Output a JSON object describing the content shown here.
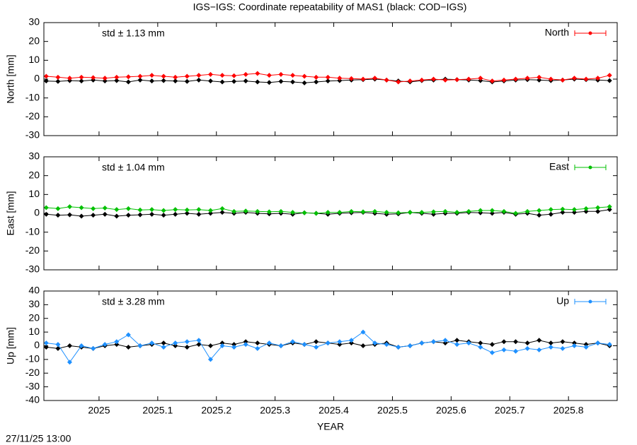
{
  "title": "IGS−IGS: Coordinate repeatability of MAS1 (black: COD−IGS)",
  "footer": "27/11/25 13:00",
  "chart_data": [
    {
      "type": "line",
      "ylabel": "North [mm]",
      "annotation": "std ± 1.13 mm",
      "legend": "top-right",
      "xlim": [
        2024.906,
        2025.883
      ],
      "xticks": [
        2025,
        2025.1,
        2025.2,
        2025.3,
        2025.4,
        2025.5,
        2025.6,
        2025.7,
        2025.8
      ],
      "ylim": [
        -30,
        30
      ],
      "yticks": [
        -30,
        -20,
        -10,
        0,
        10,
        20,
        30
      ],
      "x": [
        2024.91,
        2024.93,
        2024.95,
        2024.97,
        2024.99,
        2025.01,
        2025.03,
        2025.05,
        2025.07,
        2025.09,
        2025.11,
        2025.13,
        2025.15,
        2025.17,
        2025.19,
        2025.21,
        2025.23,
        2025.25,
        2025.27,
        2025.29,
        2025.31,
        2025.33,
        2025.35,
        2025.37,
        2025.39,
        2025.41,
        2025.43,
        2025.45,
        2025.47,
        2025.49,
        2025.51,
        2025.53,
        2025.55,
        2025.57,
        2025.59,
        2025.61,
        2025.63,
        2025.65,
        2025.67,
        2025.69,
        2025.71,
        2025.73,
        2025.75,
        2025.77,
        2025.79,
        2025.81,
        2025.83,
        2025.85,
        2025.87
      ],
      "series": [
        {
          "color": "#000000",
          "values": [
            -1,
            -1.2,
            -0.8,
            -1,
            -0.5,
            -1,
            -0.8,
            -1.5,
            -0.5,
            -1,
            -0.8,
            -1,
            -1.2,
            -0.5,
            -1,
            -1.5,
            -1.2,
            -1,
            -1.5,
            -1.8,
            -1.2,
            -1.5,
            -2,
            -1.5,
            -1,
            -0.8,
            -0.5,
            -0.3,
            0,
            -0.5,
            -1,
            -1.5,
            -0.8,
            -0.5,
            0,
            -0.3,
            -0.5,
            -0.8,
            -1.5,
            -1,
            -0.5,
            -0.3,
            -0.5,
            -0.8,
            -0.5,
            0,
            -0.3,
            -0.5,
            -0.8
          ]
        },
        {
          "name": "North",
          "color": "#ff0000",
          "values": [
            1.5,
            1,
            0.5,
            1,
            0.8,
            0.5,
            1,
            1.2,
            1.5,
            2,
            1.5,
            1,
            1.5,
            2,
            2.5,
            2,
            1.8,
            2.5,
            3,
            2,
            2.5,
            2,
            1.5,
            1,
            1,
            0.5,
            0.3,
            0,
            0.5,
            -0.5,
            -1.5,
            -1,
            -0.5,
            0,
            -0.5,
            -0.3,
            0,
            0.5,
            -1,
            -0.5,
            0,
            0.5,
            1,
            0,
            -0.5,
            0.5,
            0,
            0.5,
            2
          ]
        }
      ]
    },
    {
      "type": "line",
      "ylabel": "East [mm]",
      "annotation": "std ± 1.04 mm",
      "legend": "top-right",
      "xlim": [
        2024.906,
        2025.883
      ],
      "xticks": [
        2025,
        2025.1,
        2025.2,
        2025.3,
        2025.4,
        2025.5,
        2025.6,
        2025.7,
        2025.8
      ],
      "ylim": [
        -30,
        30
      ],
      "yticks": [
        -30,
        -20,
        -10,
        0,
        10,
        20,
        30
      ],
      "x": [
        2024.91,
        2024.93,
        2024.95,
        2024.97,
        2024.99,
        2025.01,
        2025.03,
        2025.05,
        2025.07,
        2025.09,
        2025.11,
        2025.13,
        2025.15,
        2025.17,
        2025.19,
        2025.21,
        2025.23,
        2025.25,
        2025.27,
        2025.29,
        2025.31,
        2025.33,
        2025.35,
        2025.37,
        2025.39,
        2025.41,
        2025.43,
        2025.45,
        2025.47,
        2025.49,
        2025.51,
        2025.53,
        2025.55,
        2025.57,
        2025.59,
        2025.61,
        2025.63,
        2025.65,
        2025.67,
        2025.69,
        2025.71,
        2025.73,
        2025.75,
        2025.77,
        2025.79,
        2025.81,
        2025.83,
        2025.85,
        2025.87
      ],
      "series": [
        {
          "color": "#000000",
          "values": [
            -0.5,
            -1,
            -0.8,
            -1.5,
            -1,
            -0.5,
            -1.5,
            -1,
            -0.8,
            -0.5,
            -1,
            -0.5,
            0,
            -0.5,
            0,
            0.5,
            0,
            0.5,
            0,
            -0.3,
            0,
            -0.5,
            0.3,
            0,
            -0.5,
            0,
            0.3,
            0.5,
            0,
            -0.5,
            -0.3,
            0.5,
            0,
            -0.5,
            0,
            0,
            0.5,
            0.3,
            0,
            0.5,
            -0.5,
            0,
            -1,
            -0.5,
            0.5,
            0.5,
            1,
            1,
            2
          ]
        },
        {
          "name": "East",
          "color": "#00c000",
          "values": [
            3,
            2.5,
            3.5,
            3,
            2.5,
            2.8,
            2,
            2.5,
            1.8,
            2,
            1.5,
            2,
            1.8,
            2,
            1.5,
            2.5,
            1,
            1.2,
            1,
            0.8,
            1,
            0.5,
            0.3,
            0,
            0.5,
            0.5,
            1,
            0.8,
            1,
            0.5,
            0.3,
            0.5,
            0.5,
            0.8,
            1,
            0.5,
            1,
            1.5,
            1.5,
            1,
            0,
            1,
            1.5,
            2,
            2.2,
            2,
            2.5,
            3,
            3.5
          ]
        }
      ]
    },
    {
      "type": "line",
      "ylabel": "Up [mm]",
      "annotation": "std ± 3.28 mm",
      "legend": "top-right",
      "xlabel": "YEAR",
      "xlim": [
        2024.906,
        2025.883
      ],
      "xticks": [
        2025,
        2025.1,
        2025.2,
        2025.3,
        2025.4,
        2025.5,
        2025.6,
        2025.7,
        2025.8
      ],
      "ylim": [
        -40,
        40
      ],
      "yticks": [
        -40,
        -30,
        -20,
        -10,
        0,
        10,
        20,
        30,
        40
      ],
      "x": [
        2024.91,
        2024.93,
        2024.95,
        2024.97,
        2024.99,
        2025.01,
        2025.03,
        2025.05,
        2025.07,
        2025.09,
        2025.11,
        2025.13,
        2025.15,
        2025.17,
        2025.19,
        2025.21,
        2025.23,
        2025.25,
        2025.27,
        2025.29,
        2025.31,
        2025.33,
        2025.35,
        2025.37,
        2025.39,
        2025.41,
        2025.43,
        2025.45,
        2025.47,
        2025.49,
        2025.51,
        2025.53,
        2025.55,
        2025.57,
        2025.59,
        2025.61,
        2025.63,
        2025.65,
        2025.67,
        2025.69,
        2025.71,
        2025.73,
        2025.75,
        2025.77,
        2025.79,
        2025.81,
        2025.83,
        2025.85,
        2025.87
      ],
      "series": [
        {
          "color": "#000000",
          "values": [
            -1,
            -2,
            0,
            -1,
            -2,
            0,
            1,
            -1,
            0,
            1,
            2,
            0,
            -1,
            1,
            0,
            2,
            1,
            3,
            2,
            1,
            0,
            2,
            1,
            3,
            2,
            1,
            2,
            0,
            1,
            2,
            -1,
            0,
            2,
            3,
            2,
            4,
            3,
            2,
            1,
            3,
            3,
            2,
            4,
            2,
            3,
            2,
            1,
            2,
            0
          ]
        },
        {
          "name": "Up",
          "color": "#1e90ff",
          "values": [
            2,
            1,
            -12,
            0,
            -2,
            1,
            3,
            8,
            0,
            2,
            -1,
            2,
            3,
            4,
            -10,
            0,
            -1,
            1,
            -2,
            2,
            0,
            3,
            1,
            -1,
            2,
            3,
            4,
            10,
            2,
            1,
            -1,
            0,
            2,
            3,
            4,
            1,
            2,
            -1,
            -5,
            -3,
            -4,
            -2,
            -3,
            -1,
            -2,
            0,
            -1,
            2,
            1
          ]
        }
      ]
    }
  ]
}
